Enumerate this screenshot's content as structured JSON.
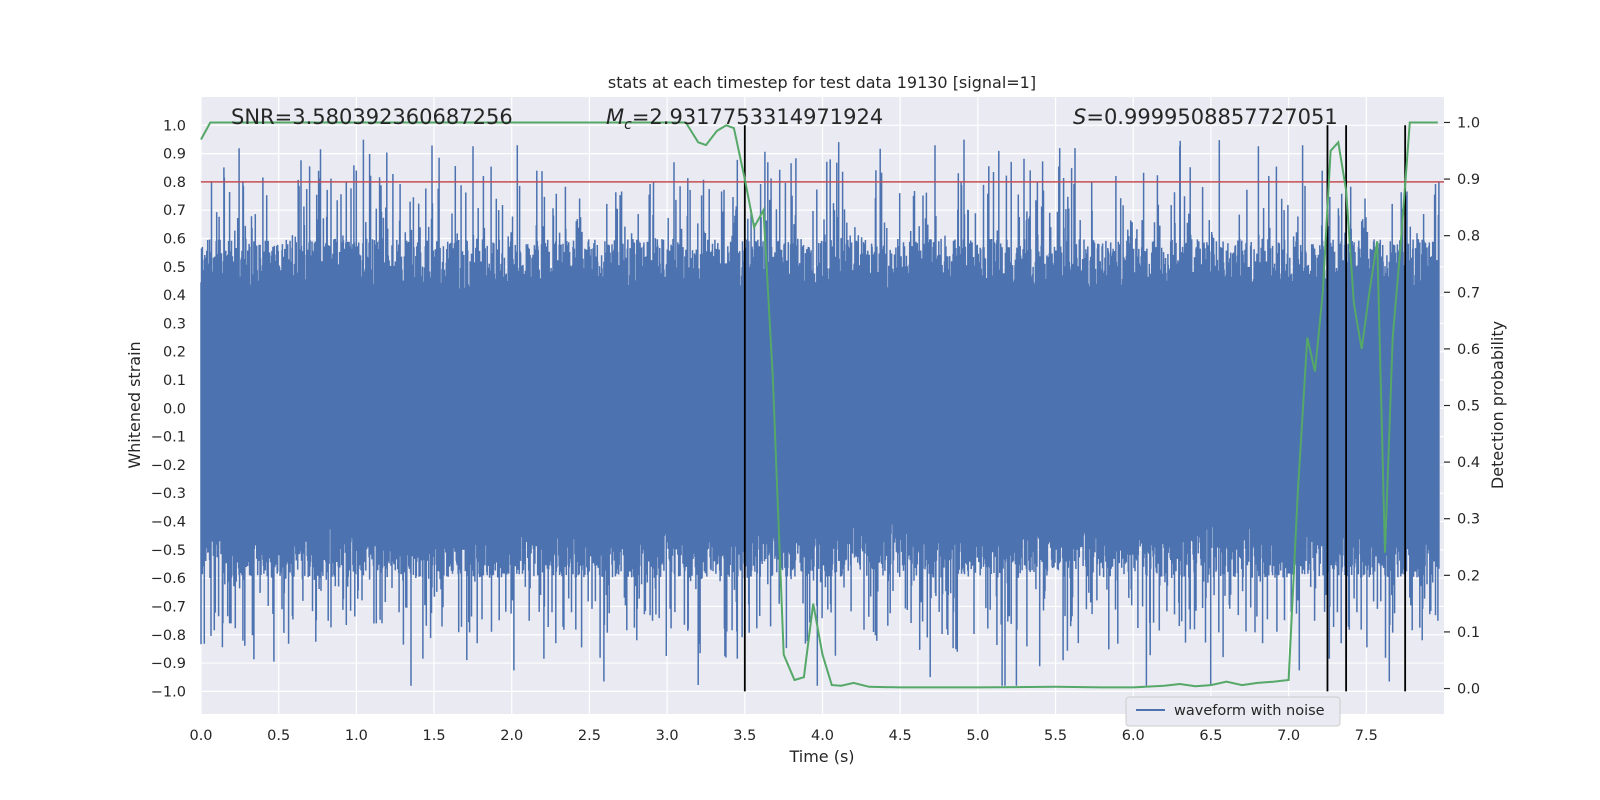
{
  "chart_data": {
    "type": "line",
    "title": "stats at each timestep for test data 19130 [signal=1]",
    "xlabel": "Time (s)",
    "ylabel": "Whitened strain",
    "y2label": "Detection probability",
    "xlim": [
      0.0,
      8.0
    ],
    "ylim": [
      -1.08,
      1.1
    ],
    "y2lim": [
      -0.045,
      1.045
    ],
    "x_ticks": [
      "0.0",
      "0.5",
      "1.0",
      "1.5",
      "2.0",
      "2.5",
      "3.0",
      "3.5",
      "4.0",
      "4.5",
      "5.0",
      "5.5",
      "6.0",
      "6.5",
      "7.0",
      "7.5"
    ],
    "y_ticks": [
      "1.0",
      "0.9",
      "0.8",
      "0.7",
      "0.6",
      "0.5",
      "0.4",
      "0.3",
      "0.2",
      "0.1",
      "0.0",
      "−0.1",
      "−0.2",
      "−0.3",
      "−0.4",
      "−0.5",
      "−0.6",
      "−0.7",
      "−0.8",
      "−0.9",
      "−1.0"
    ],
    "y2_ticks": [
      "1.0",
      "0.9",
      "0.8",
      "0.7",
      "0.6",
      "0.5",
      "0.4",
      "0.3",
      "0.2",
      "0.1",
      "0.0"
    ],
    "annotations": {
      "snr": "SNR=3.580392360687256",
      "mc_symbol": "M",
      "mc_sub": "c",
      "mc_value": "=2.9317753314971924",
      "s_symbol": "S",
      "s_value": "=0.9999508857727051"
    },
    "threshold": 0.8,
    "vlines": [
      3.5,
      7.25,
      7.37,
      7.75
    ],
    "legend": {
      "label": "waveform with noise",
      "location": "lower-right"
    },
    "colors": {
      "waveform": "#4c72b0",
      "probability": "#55a868",
      "threshold": "#c44e52",
      "vline": "#000000",
      "axes_bg": "#eaeaf2",
      "grid": "#ffffff"
    },
    "series": [
      {
        "name": "waveform with noise",
        "note": "dense whitened noise, core amplitude about ±0.4 with spikes up to about ±0.95",
        "core_amplitude": 0.4,
        "spike_amplitude": 0.95,
        "samples": 16384
      },
      {
        "name": "detection probability",
        "axis": "right",
        "x": [
          0.0,
          0.06,
          0.2,
          0.5,
          1.0,
          1.5,
          2.0,
          2.5,
          3.0,
          3.12,
          3.2,
          3.25,
          3.32,
          3.38,
          3.43,
          3.5,
          3.56,
          3.62,
          3.68,
          3.75,
          3.82,
          3.88,
          3.94,
          4.0,
          4.06,
          4.12,
          4.2,
          4.3,
          4.5,
          5.0,
          5.5,
          5.8,
          6.0,
          6.2,
          6.3,
          6.4,
          6.5,
          6.6,
          6.7,
          6.8,
          6.9,
          7.0,
          7.06,
          7.12,
          7.17,
          7.22,
          7.27,
          7.32,
          7.37,
          7.42,
          7.47,
          7.52,
          7.57,
          7.62,
          7.67,
          7.72,
          7.78,
          7.83,
          7.88,
          7.96
        ],
        "values": [
          0.97,
          1.0,
          1.0,
          1.0,
          1.0,
          1.0,
          1.0,
          1.0,
          1.0,
          1.0,
          0.965,
          0.96,
          0.985,
          0.995,
          0.99,
          0.9,
          0.815,
          0.845,
          0.55,
          0.06,
          0.015,
          0.02,
          0.15,
          0.06,
          0.006,
          0.005,
          0.01,
          0.003,
          0.002,
          0.002,
          0.003,
          0.002,
          0.002,
          0.005,
          0.008,
          0.004,
          0.006,
          0.012,
          0.006,
          0.01,
          0.012,
          0.015,
          0.35,
          0.62,
          0.56,
          0.7,
          0.95,
          0.965,
          0.88,
          0.68,
          0.6,
          0.7,
          0.79,
          0.24,
          0.62,
          0.78,
          1.0,
          1.0,
          1.0,
          1.0
        ]
      }
    ]
  }
}
